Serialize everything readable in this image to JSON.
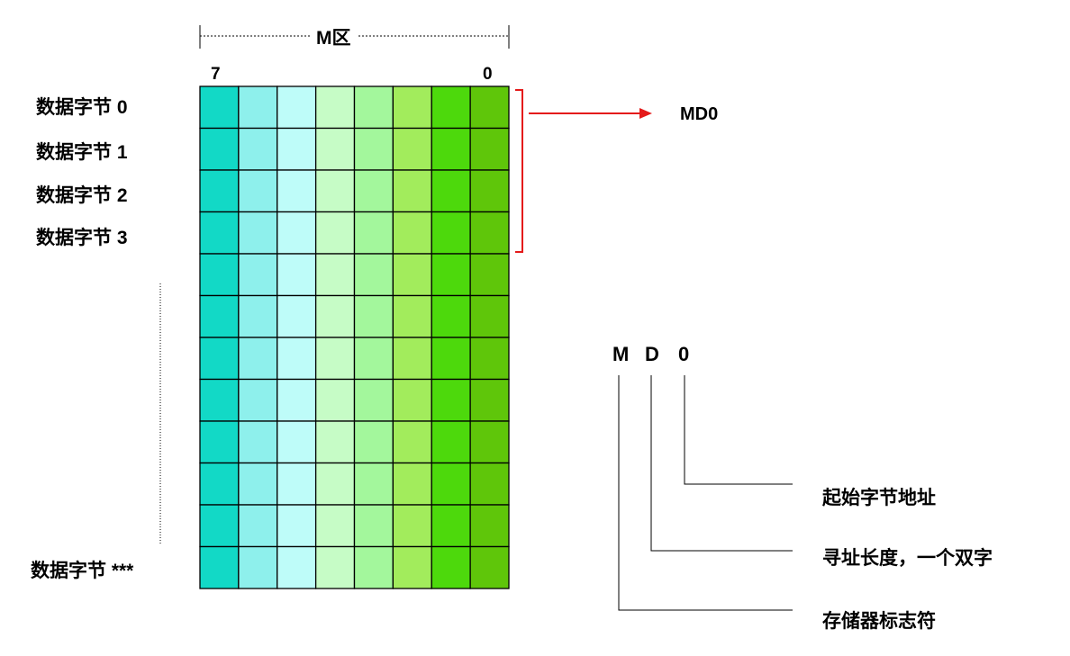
{
  "zone_title": "M区",
  "bit_labels": {
    "high": "7",
    "low": "0"
  },
  "row_labels": [
    "数据字节 0",
    "数据字节 1",
    "数据字节 2",
    "数据字节 3",
    "数据字节 ***"
  ],
  "grid": {
    "rows": 12,
    "columns": 8,
    "column_colors": [
      "#12D9C6",
      "#8EF0EC",
      "#BEFCF9",
      "#C6FCC6",
      "#A3F79C",
      "#A2EC5C",
      "#4DD90C",
      "#5FC60A"
    ]
  },
  "bracket_target": "MD0",
  "arrow_color": "#E41A1A",
  "address_parts": [
    "M",
    "D",
    "0"
  ],
  "descriptions": {
    "start_byte": "起始字节地址",
    "length": "寻址长度，一个双字",
    "identifier": "存储器标志符"
  }
}
